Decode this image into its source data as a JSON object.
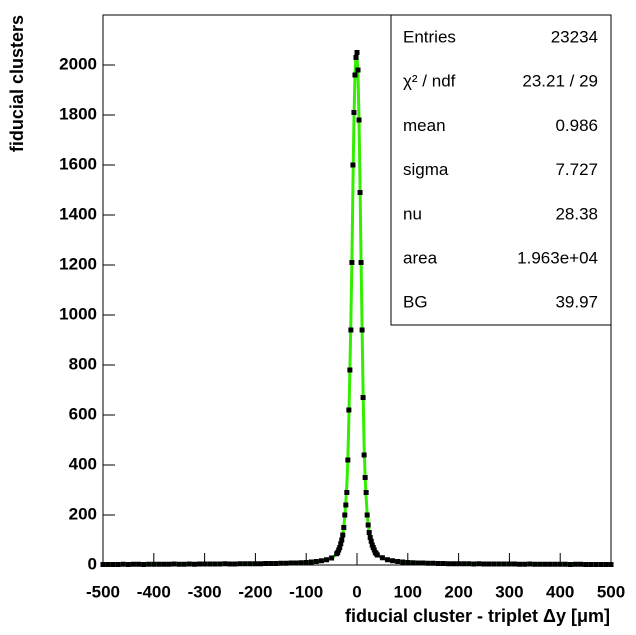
{
  "chart_data": {
    "type": "scatter",
    "x_label": "fiducial cluster - triplet  Δy [μm]",
    "y_label": "fiducial clusters",
    "xlim": [
      -500,
      500
    ],
    "ylim": [
      0,
      2200
    ],
    "xticks": [
      -500,
      -400,
      -300,
      -200,
      -100,
      0,
      100,
      200,
      300,
      400,
      500
    ],
    "yticks": [
      0,
      200,
      400,
      600,
      800,
      1000,
      1200,
      1400,
      1600,
      1800,
      2000
    ],
    "x": [
      -500,
      -490,
      -480,
      -470,
      -460,
      -450,
      -440,
      -430,
      -420,
      -410,
      -400,
      -390,
      -380,
      -370,
      -360,
      -350,
      -340,
      -330,
      -320,
      -310,
      -300,
      -290,
      -280,
      -270,
      -260,
      -250,
      -240,
      -230,
      -220,
      -210,
      -200,
      -190,
      -180,
      -170,
      -160,
      -150,
      -140,
      -130,
      -120,
      -110,
      -100,
      -90,
      -80,
      -70,
      -60,
      -50,
      -40,
      -38,
      -36,
      -34,
      -32,
      -30,
      -28,
      -26,
      -24,
      -22,
      -20,
      -18,
      -16,
      -14,
      -12,
      -10,
      -8,
      -6,
      -4,
      -2,
      0,
      2,
      4,
      6,
      8,
      10,
      12,
      14,
      16,
      18,
      20,
      22,
      24,
      26,
      28,
      30,
      32,
      34,
      36,
      38,
      40,
      50,
      60,
      70,
      80,
      90,
      100,
      110,
      120,
      130,
      140,
      150,
      160,
      170,
      180,
      190,
      200,
      210,
      220,
      230,
      240,
      250,
      260,
      270,
      280,
      290,
      300,
      310,
      320,
      330,
      340,
      350,
      360,
      370,
      380,
      390,
      400,
      410,
      420,
      430,
      440,
      450,
      460,
      470,
      480,
      490,
      500
    ],
    "series": [
      {
        "color": "#000000",
        "values": [
          2,
          2,
          2,
          2,
          3,
          2,
          3,
          3,
          2,
          3,
          3,
          3,
          3,
          3,
          4,
          3,
          3,
          4,
          3,
          4,
          4,
          4,
          4,
          4,
          5,
          4,
          4,
          5,
          5,
          5,
          5,
          5,
          6,
          6,
          6,
          7,
          7,
          8,
          8,
          9,
          10,
          12,
          14,
          17,
          21,
          28,
          45,
          50,
          60,
          70,
          85,
          100,
          120,
          150,
          200,
          240,
          290,
          420,
          620,
          780,
          940,
          1210,
          1600,
          1810,
          1960,
          2030,
          2050,
          1980,
          1780,
          1490,
          1210,
          940,
          670,
          440,
          350,
          290,
          200,
          160,
          130,
          110,
          95,
          80,
          70,
          60,
          50,
          45,
          40,
          29,
          21,
          17,
          14,
          12,
          10,
          9,
          8,
          8,
          7,
          7,
          6,
          6,
          5,
          5,
          5,
          5,
          5,
          4,
          5,
          4,
          4,
          4,
          4,
          4,
          4,
          4,
          3,
          3,
          4,
          3,
          3,
          3,
          3,
          3,
          3,
          3,
          2,
          3,
          3,
          2,
          2,
          2,
          2,
          2,
          2
        ]
      },
      {
        "type": "line",
        "color": "#33ee00",
        "values": [
          2,
          2,
          2,
          2,
          2,
          2,
          2,
          3,
          3,
          3,
          3,
          3,
          3,
          3,
          3,
          3,
          4,
          4,
          4,
          4,
          4,
          4,
          4,
          4,
          4,
          5,
          5,
          5,
          5,
          5,
          5,
          6,
          6,
          6,
          7,
          7,
          8,
          8,
          9,
          10,
          11,
          12,
          14,
          17,
          21,
          27,
          44,
          50,
          58,
          68,
          82,
          100,
          122,
          152,
          195,
          250,
          320,
          420,
          590,
          780,
          980,
          1220,
          1520,
          1780,
          1960,
          2040,
          2040,
          1960,
          1780,
          1520,
          1220,
          950,
          690,
          480,
          350,
          270,
          205,
          160,
          130,
          110,
          94,
          80,
          69,
          59,
          51,
          45,
          40,
          28,
          21,
          17,
          14,
          12,
          10,
          9,
          8,
          8,
          7,
          7,
          6,
          6,
          5,
          5,
          5,
          5,
          5,
          4,
          4,
          4,
          4,
          4,
          4,
          4,
          4,
          3,
          3,
          3,
          3,
          3,
          3,
          3,
          3,
          3,
          3,
          3,
          3,
          3,
          2,
          2,
          2,
          2,
          2,
          2,
          2
        ]
      }
    ],
    "stats": [
      {
        "label": "Entries",
        "value": 23234
      },
      {
        "label": "χ² / ndf",
        "value": "23.21 / 29"
      },
      {
        "label": "mean",
        "value": 0.986
      },
      {
        "label": "sigma",
        "value": 7.727
      },
      {
        "label": "nu",
        "value": 28.38
      },
      {
        "label": "area",
        "value": "1.963e+04"
      },
      {
        "label": "BG",
        "value": 39.97
      }
    ]
  }
}
